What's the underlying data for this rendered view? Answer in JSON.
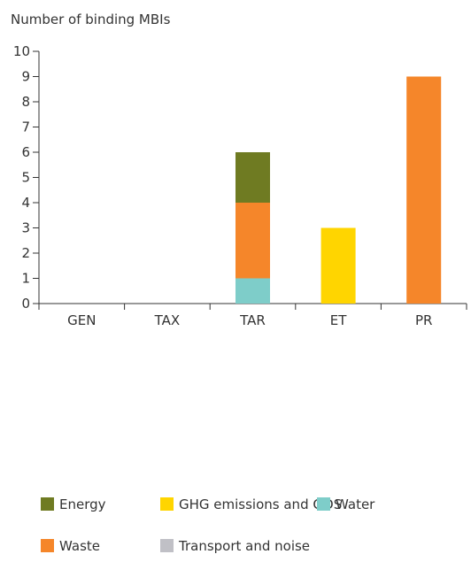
{
  "chart_data": {
    "type": "bar",
    "stacked": true,
    "title": "Number of binding MBIs",
    "xlabel": "",
    "ylabel": "Number of binding MBIs",
    "categories": [
      "GEN",
      "TAX",
      "TAR",
      "ET",
      "PR"
    ],
    "ylim": [
      0,
      10
    ],
    "yticks": [
      0,
      1,
      2,
      3,
      4,
      5,
      6,
      7,
      8,
      9,
      10
    ],
    "grid": false,
    "legend_position": "bottom",
    "series": [
      {
        "name": "Water",
        "color": "#7ecdc9",
        "values": [
          0,
          0,
          1,
          0,
          0
        ]
      },
      {
        "name": "Waste",
        "color": "#f5862a",
        "values": [
          0,
          0,
          3,
          0,
          9
        ]
      },
      {
        "name": "Energy",
        "color": "#6f7b22",
        "values": [
          0,
          0,
          2,
          0,
          0
        ]
      },
      {
        "name": "GHG emissions and ODS",
        "color": "#ffd500",
        "values": [
          0,
          0,
          0,
          3,
          0
        ]
      },
      {
        "name": "Transport  and noise",
        "color": "#c0c0c6",
        "values": [
          0,
          0,
          0,
          0,
          0
        ]
      }
    ],
    "legend": [
      [
        "Energy",
        "GHG emissions and ODS",
        "Water"
      ],
      [
        "Waste",
        "Transport  and noise"
      ]
    ]
  }
}
